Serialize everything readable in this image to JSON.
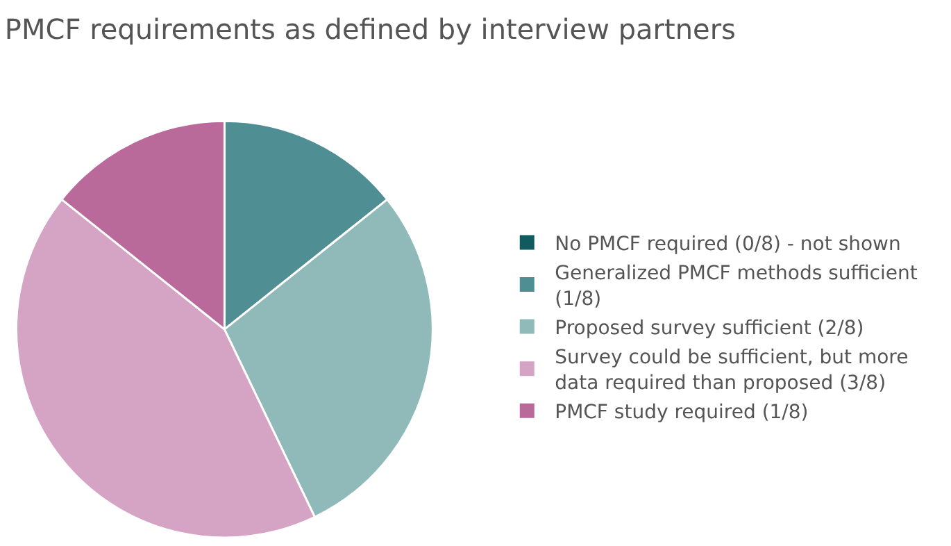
{
  "chart_data": {
    "type": "pie",
    "title": "PMCF requirements as defined by interview partners",
    "categories": [
      "No PMCF required (0/8) - not shown",
      "Generalized PMCF methods sufficient (1/8)",
      "Proposed survey sufficient (2/8)",
      "Survey could be sufficient, but more data required than proposed (3/8)",
      "PMCF study required (1/8)"
    ],
    "values": [
      0,
      1,
      2,
      3,
      1
    ],
    "colors": [
      "#0f5b60",
      "#4f8f94",
      "#8fbab9",
      "#d5a3c4",
      "#b96a9b"
    ],
    "legend": "right"
  }
}
